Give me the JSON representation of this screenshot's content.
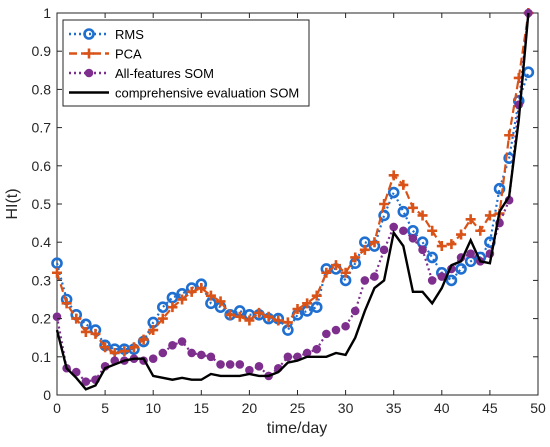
{
  "chart_data": {
    "type": "line",
    "title": "",
    "xlabel": "time/day",
    "ylabel": "HI(t)",
    "xlim": [
      0,
      50
    ],
    "ylim": [
      0,
      1
    ],
    "xticks": [
      "0",
      "5",
      "10",
      "15",
      "20",
      "25",
      "30",
      "35",
      "40",
      "45",
      "50"
    ],
    "yticks": [
      "0",
      "0.1",
      "0.2",
      "0.3",
      "0.4",
      "0.5",
      "0.6",
      "0.7",
      "0.8",
      "0.9",
      "1"
    ],
    "grid": false,
    "legend_position": "top-left",
    "x": [
      0,
      1,
      2,
      3,
      4,
      5,
      6,
      7,
      8,
      9,
      10,
      11,
      12,
      13,
      14,
      15,
      16,
      17,
      18,
      19,
      20,
      21,
      22,
      23,
      24,
      25,
      26,
      27,
      28,
      29,
      30,
      31,
      32,
      33,
      34,
      35,
      36,
      37,
      38,
      39,
      40,
      41,
      42,
      43,
      44,
      45,
      46,
      47,
      48,
      49
    ],
    "series": [
      {
        "name": "RMS",
        "color": "#1f6fd1",
        "line_style": "dotted",
        "marker": "circle-open",
        "values": [
          0.345,
          0.25,
          0.21,
          0.185,
          0.17,
          0.13,
          0.12,
          0.12,
          0.12,
          0.14,
          0.19,
          0.23,
          0.255,
          0.265,
          0.28,
          0.29,
          0.24,
          0.23,
          0.21,
          0.22,
          0.21,
          0.21,
          0.2,
          0.2,
          0.17,
          0.21,
          0.22,
          0.23,
          0.33,
          0.33,
          0.3,
          0.345,
          0.4,
          0.39,
          0.47,
          0.53,
          0.48,
          0.43,
          0.4,
          0.36,
          0.32,
          0.3,
          0.33,
          0.35,
          0.36,
          0.4,
          0.54,
          0.62,
          0.77,
          0.845
        ]
      },
      {
        "name": "PCA",
        "color": "#d95319",
        "line_style": "dashed",
        "marker": "plus",
        "values": [
          0.32,
          0.24,
          0.2,
          0.165,
          0.16,
          0.125,
          0.11,
          0.115,
          0.125,
          0.145,
          0.17,
          0.2,
          0.23,
          0.25,
          0.27,
          0.28,
          0.26,
          0.245,
          0.21,
          0.205,
          0.195,
          0.215,
          0.205,
          0.195,
          0.19,
          0.225,
          0.24,
          0.26,
          0.32,
          0.34,
          0.32,
          0.36,
          0.38,
          0.4,
          0.5,
          0.575,
          0.55,
          0.49,
          0.47,
          0.43,
          0.39,
          0.395,
          0.42,
          0.46,
          0.43,
          0.47,
          0.475,
          0.68,
          0.83,
          1.0
        ]
      },
      {
        "name": "All-features SOM",
        "color": "#7e2f8e",
        "line_style": "dotted",
        "marker": "circle-filled",
        "values": [
          0.205,
          0.07,
          0.06,
          0.035,
          0.04,
          0.075,
          0.09,
          0.09,
          0.095,
          0.09,
          0.095,
          0.11,
          0.13,
          0.14,
          0.11,
          0.105,
          0.1,
          0.08,
          0.08,
          0.08,
          0.065,
          0.075,
          0.05,
          0.07,
          0.1,
          0.1,
          0.11,
          0.12,
          0.16,
          0.17,
          0.18,
          0.22,
          0.3,
          0.31,
          0.38,
          0.44,
          0.43,
          0.41,
          0.38,
          0.3,
          0.31,
          0.33,
          0.36,
          0.37,
          0.35,
          0.37,
          0.45,
          0.51,
          0.76,
          1.0
        ]
      },
      {
        "name": "comprehensive evaluation SOM",
        "color": "#000000",
        "line_style": "solid",
        "marker": "none",
        "values": [
          0.17,
          0.07,
          0.045,
          0.015,
          0.025,
          0.07,
          0.08,
          0.09,
          0.095,
          0.095,
          0.05,
          0.045,
          0.04,
          0.045,
          0.04,
          0.04,
          0.055,
          0.05,
          0.05,
          0.05,
          0.055,
          0.05,
          0.05,
          0.06,
          0.085,
          0.09,
          0.1,
          0.1,
          0.1,
          0.11,
          0.105,
          0.15,
          0.22,
          0.28,
          0.3,
          0.425,
          0.39,
          0.27,
          0.27,
          0.24,
          0.28,
          0.34,
          0.35,
          0.405,
          0.35,
          0.345,
          0.48,
          0.52,
          0.72,
          1.0
        ]
      }
    ]
  }
}
